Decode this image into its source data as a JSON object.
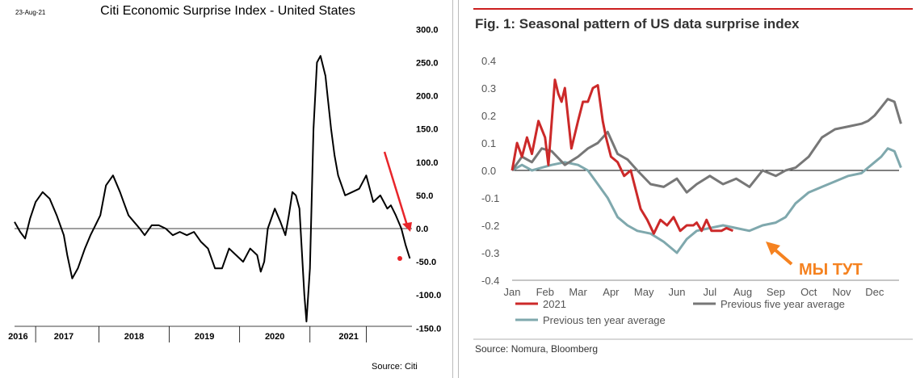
{
  "left_chart": {
    "date": "23-Aug-21",
    "title": "Citi Economic Surprise Index - United States",
    "source": "Source: Citi",
    "y_ticks": [
      "300.0",
      "250.0",
      "200.0",
      "150.0",
      "100.0",
      "50.0",
      "0.0",
      "-50.0",
      "-100.0",
      "-150.0"
    ],
    "y_tick_values": [
      300,
      250,
      200,
      150,
      100,
      50,
      0,
      -50,
      -100,
      -150
    ],
    "years": [
      "2016",
      "2017",
      "2018",
      "2019",
      "2020",
      "2021"
    ],
    "line_color": "#000000",
    "arrow_color": "#e8252a"
  },
  "right_chart": {
    "title": "Fig. 1: Seasonal pattern of US data surprise index",
    "source": "Source: Nomura, Bloomberg",
    "annotation": "МЫ ТУТ",
    "annotation_color": "#f58220",
    "accent_rule_color": "#cc1f1f",
    "y_ticks": [
      "0.4",
      "0.3",
      "0.2",
      "0.1",
      "0.0",
      "-0.1",
      "-0.2",
      "-0.3",
      "-0.4"
    ],
    "y_tick_values": [
      0.4,
      0.3,
      0.2,
      0.1,
      0.0,
      -0.1,
      -0.2,
      -0.3,
      -0.4
    ],
    "months": [
      "Jan",
      "Feb",
      "Mar",
      "Apr",
      "May",
      "Jun",
      "Jul",
      "Aug",
      "Sep",
      "Oct",
      "Nov",
      "Dec"
    ],
    "legend": [
      {
        "name": "2021",
        "color": "#cc2929"
      },
      {
        "name": "Previous five year average",
        "color": "#777777"
      },
      {
        "name": "Previous ten year average",
        "color": "#7fa8ad"
      }
    ]
  },
  "chart_data": [
    {
      "type": "line",
      "title": "Citi Economic Surprise Index - United States",
      "xlabel": "",
      "ylabel": "",
      "ylim": [
        -150,
        300
      ],
      "x_range": [
        2016.0,
        2021.65
      ],
      "grid": false,
      "series": [
        {
          "x": [
            2016.0,
            2016.08,
            2016.15,
            2016.22,
            2016.3,
            2016.4,
            2016.5,
            2016.6,
            2016.7,
            2016.75,
            2016.82,
            2016.9,
            2017.0,
            2017.08,
            2017.15,
            2017.22,
            2017.3,
            2017.4,
            2017.5,
            2017.55,
            2017.62,
            2017.7,
            2017.78,
            2017.85,
            2017.95,
            2018.05,
            2018.15,
            2018.25,
            2018.35,
            2018.45,
            2018.55,
            2018.65,
            2018.75,
            2018.85,
            2018.95,
            2019.05,
            2019.15,
            2019.25,
            2019.35,
            2019.45,
            2019.5,
            2019.55,
            2019.6,
            2019.7,
            2019.78,
            2019.85,
            2019.9,
            2019.95,
            2020.0,
            2020.05,
            2020.12,
            2020.15,
            2020.2,
            2020.25,
            2020.3,
            2020.35,
            2020.42,
            2020.45,
            2020.5,
            2020.55,
            2020.6,
            2020.7,
            2020.8,
            2020.9,
            2021.0,
            2021.05,
            2021.1,
            2021.2,
            2021.25,
            2021.3,
            2021.35,
            2021.42,
            2021.5,
            2021.56,
            2021.62
          ],
          "values": [
            10,
            -5,
            -15,
            15,
            40,
            55,
            45,
            20,
            -10,
            -40,
            -75,
            -60,
            -30,
            -10,
            5,
            20,
            65,
            80,
            55,
            40,
            20,
            10,
            0,
            -10,
            5,
            5,
            0,
            -10,
            -5,
            -10,
            -5,
            -20,
            -30,
            -60,
            -60,
            -30,
            -40,
            -50,
            -30,
            -40,
            -65,
            -50,
            0,
            30,
            10,
            -10,
            20,
            55,
            50,
            30,
            -100,
            -140,
            -60,
            150,
            250,
            260,
            230,
            200,
            150,
            110,
            80,
            50,
            55,
            60,
            80,
            60,
            40,
            50,
            40,
            30,
            35,
            20,
            0,
            -25,
            -45
          ]
        }
      ]
    },
    {
      "type": "line",
      "title": "Fig. 1: Seasonal pattern of US data surprise index",
      "xlabel": "",
      "ylabel": "",
      "ylim": [
        -0.4,
        0.4
      ],
      "categories": [
        "Jan",
        "Feb",
        "Mar",
        "Apr",
        "May",
        "Jun",
        "Jul",
        "Aug",
        "Sep",
        "Oct",
        "Nov",
        "Dec"
      ],
      "grid": false,
      "legend_position": "bottom",
      "series": [
        {
          "name": "2021",
          "x": [
            0,
            0.15,
            0.3,
            0.45,
            0.6,
            0.8,
            1.0,
            1.1,
            1.3,
            1.4,
            1.5,
            1.6,
            1.8,
            2.0,
            2.15,
            2.3,
            2.45,
            2.6,
            2.75,
            2.85,
            3.0,
            3.2,
            3.4,
            3.6,
            3.75,
            3.9,
            4.1,
            4.3,
            4.5,
            4.7,
            4.9,
            5.1,
            5.3,
            5.5,
            5.6,
            5.75,
            5.9,
            6.05,
            6.2,
            6.35,
            6.5,
            6.7
          ],
          "values": [
            0,
            0.1,
            0.05,
            0.12,
            0.06,
            0.18,
            0.12,
            0.02,
            0.33,
            0.28,
            0.25,
            0.3,
            0.08,
            0.18,
            0.25,
            0.25,
            0.3,
            0.31,
            0.18,
            0.12,
            0.05,
            0.03,
            -0.02,
            0.0,
            -0.07,
            -0.14,
            -0.18,
            -0.23,
            -0.18,
            -0.2,
            -0.17,
            -0.22,
            -0.2,
            -0.2,
            -0.19,
            -0.22,
            -0.18,
            -0.22,
            -0.22,
            -0.22,
            -0.21,
            -0.22
          ]
        },
        {
          "name": "Previous five year average",
          "x": [
            0,
            0.3,
            0.6,
            0.9,
            1.2,
            1.6,
            2.0,
            2.3,
            2.6,
            2.9,
            3.2,
            3.5,
            3.8,
            4.2,
            4.6,
            5.0,
            5.3,
            5.6,
            6.0,
            6.4,
            6.8,
            7.2,
            7.6,
            8.0,
            8.3,
            8.6,
            9.0,
            9.4,
            9.8,
            10.2,
            10.6,
            10.8,
            11.0,
            11.2,
            11.4,
            11.6,
            11.8
          ],
          "values": [
            0,
            0.05,
            0.03,
            0.08,
            0.07,
            0.02,
            0.05,
            0.08,
            0.1,
            0.14,
            0.06,
            0.04,
            0.0,
            -0.05,
            -0.06,
            -0.03,
            -0.08,
            -0.05,
            -0.02,
            -0.05,
            -0.03,
            -0.06,
            0.0,
            -0.02,
            0.0,
            0.01,
            0.05,
            0.12,
            0.15,
            0.16,
            0.17,
            0.18,
            0.2,
            0.23,
            0.26,
            0.25,
            0.17
          ]
        },
        {
          "name": "Previous ten year average",
          "x": [
            0,
            0.3,
            0.6,
            0.9,
            1.2,
            1.6,
            2.0,
            2.3,
            2.6,
            2.9,
            3.2,
            3.5,
            3.8,
            4.2,
            4.6,
            5.0,
            5.3,
            5.6,
            6.0,
            6.4,
            6.8,
            7.2,
            7.6,
            8.0,
            8.3,
            8.6,
            9.0,
            9.4,
            9.8,
            10.2,
            10.6,
            10.8,
            11.0,
            11.2,
            11.4,
            11.6,
            11.8
          ],
          "values": [
            0,
            0.02,
            0.0,
            0.01,
            0.02,
            0.03,
            0.02,
            0.0,
            -0.05,
            -0.1,
            -0.17,
            -0.2,
            -0.22,
            -0.23,
            -0.26,
            -0.3,
            -0.25,
            -0.22,
            -0.21,
            -0.2,
            -0.21,
            -0.22,
            -0.2,
            -0.19,
            -0.17,
            -0.12,
            -0.08,
            -0.06,
            -0.04,
            -0.02,
            -0.01,
            0.01,
            0.03,
            0.05,
            0.08,
            0.07,
            0.01
          ]
        }
      ]
    }
  ]
}
